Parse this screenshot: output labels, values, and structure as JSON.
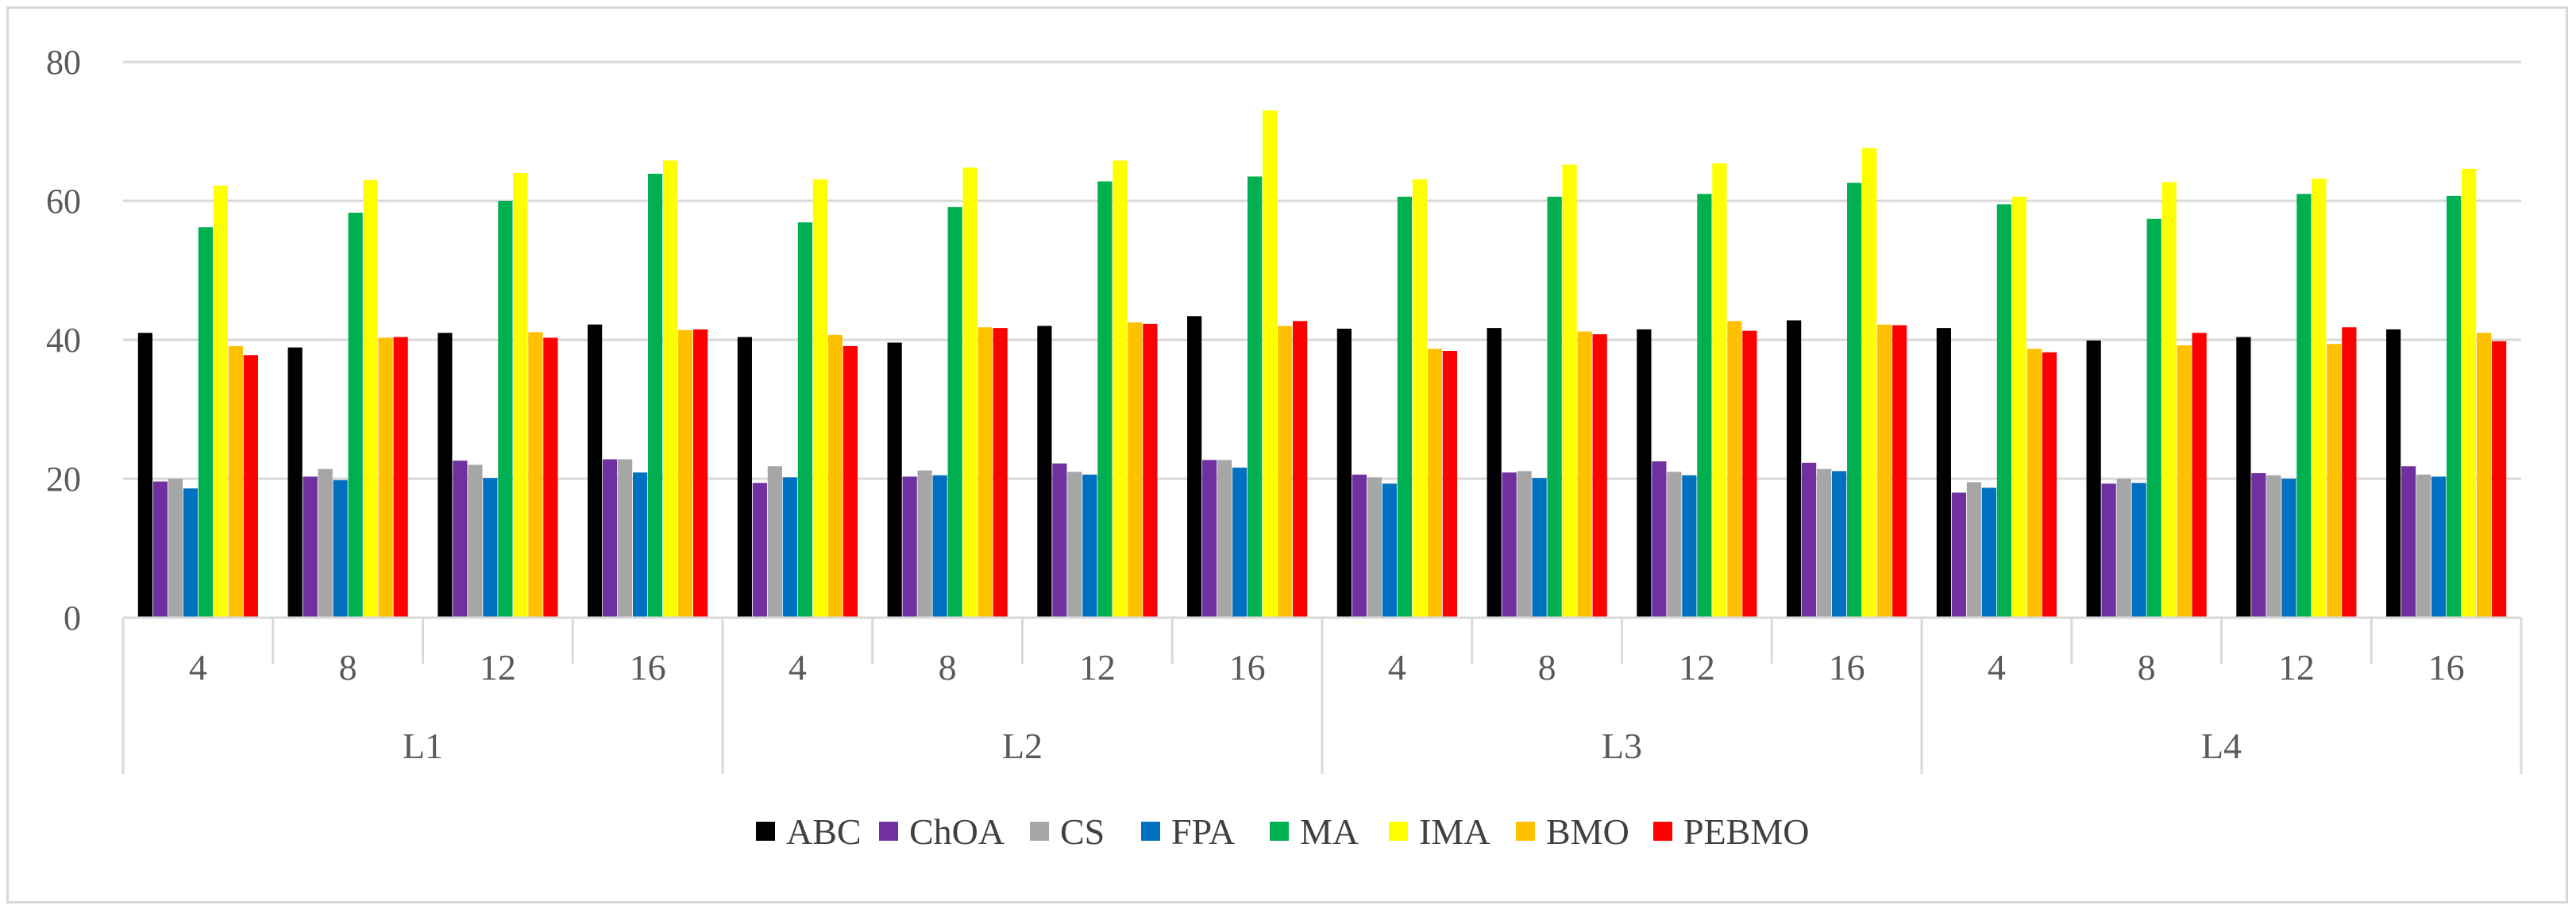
{
  "chart_data": {
    "type": "bar",
    "title": "",
    "xlabel": "",
    "ylabel": "",
    "ylim": [
      0,
      80
    ],
    "yticks": [
      "0",
      "20",
      "40",
      "60",
      "80"
    ],
    "grid": true,
    "legend_position": "bottom",
    "groups": [
      "L1",
      "L2",
      "L3",
      "L4"
    ],
    "categories": [
      "4",
      "8",
      "12",
      "16",
      "4",
      "8",
      "12",
      "16",
      "4",
      "8",
      "12",
      "16",
      "4",
      "8",
      "12",
      "16"
    ],
    "series": [
      {
        "name": "ABC",
        "color": "#000000",
        "values": [
          41.0,
          38.9,
          41.0,
          42.2,
          40.4,
          39.6,
          42.0,
          43.4,
          41.6,
          41.7,
          41.5,
          42.8,
          41.7,
          39.9,
          40.4,
          41.5
        ]
      },
      {
        "name": "ChOA",
        "color": "#7030a0",
        "values": [
          19.6,
          20.3,
          22.6,
          22.8,
          19.4,
          20.3,
          22.2,
          22.7,
          20.6,
          20.9,
          22.5,
          22.3,
          18.0,
          19.3,
          20.8,
          21.8
        ]
      },
      {
        "name": "CS",
        "color": "#a6a6a6",
        "values": [
          20.0,
          21.4,
          22.0,
          22.8,
          21.8,
          21.2,
          21.0,
          22.7,
          20.2,
          21.1,
          21.0,
          21.4,
          19.5,
          20.0,
          20.5,
          20.6
        ]
      },
      {
        "name": "FPA",
        "color": "#0070c0",
        "values": [
          18.6,
          19.8,
          20.1,
          20.9,
          20.2,
          20.5,
          20.6,
          21.6,
          19.3,
          20.1,
          20.5,
          21.1,
          18.7,
          19.4,
          20.0,
          20.3
        ]
      },
      {
        "name": "MA",
        "color": "#00b050",
        "values": [
          56.2,
          58.3,
          60.0,
          63.9,
          56.9,
          59.1,
          62.8,
          63.5,
          60.6,
          60.6,
          61.0,
          62.6,
          59.5,
          57.4,
          61.0,
          60.7
        ]
      },
      {
        "name": "IMA",
        "color": "#ffff00",
        "values": [
          62.2,
          63.0,
          64.0,
          65.8,
          63.1,
          64.8,
          65.8,
          73.0,
          63.1,
          65.2,
          65.4,
          67.6,
          60.6,
          62.7,
          63.2,
          64.6
        ]
      },
      {
        "name": "BMO",
        "color": "#ffc000",
        "values": [
          39.1,
          40.3,
          41.1,
          41.4,
          40.7,
          41.8,
          42.5,
          42.0,
          38.7,
          41.2,
          42.7,
          42.2,
          38.7,
          39.2,
          39.4,
          41.0
        ]
      },
      {
        "name": "PEBMO",
        "color": "#ff0000",
        "values": [
          37.8,
          40.4,
          40.3,
          41.5,
          39.1,
          41.7,
          42.3,
          42.7,
          38.4,
          40.8,
          41.3,
          42.1,
          38.2,
          41.0,
          41.8,
          39.8
        ]
      }
    ]
  }
}
